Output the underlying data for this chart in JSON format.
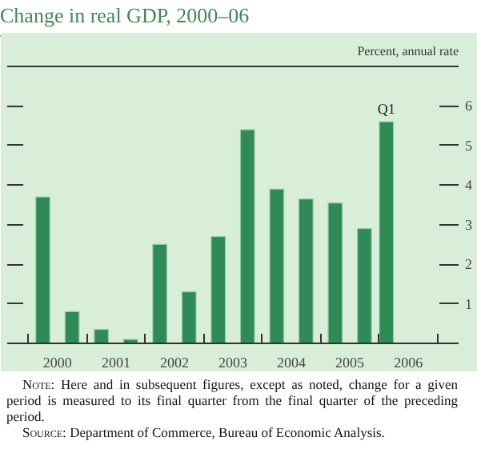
{
  "chart_data": {
    "type": "bar",
    "title": "Change in real GDP, 2000–06",
    "ylabel": "Percent, annual rate",
    "x": [
      2000.25,
      2000.75,
      2001.25,
      2001.75,
      2002.25,
      2002.75,
      2003.25,
      2003.75,
      2004.25,
      2004.75,
      2005.25,
      2005.75,
      2006.125
    ],
    "values": [
      3.7,
      0.8,
      0.35,
      0.1,
      2.5,
      1.3,
      2.7,
      5.4,
      3.9,
      3.65,
      3.55,
      2.9,
      5.6
    ],
    "color": "#2e8b57",
    "xlim": [
      1999.64,
      2007.36
    ],
    "xticks": [
      {
        "value": 2000,
        "label": null
      },
      {
        "value": 2000.5,
        "label": "2000"
      },
      {
        "value": 2001,
        "label": null
      },
      {
        "value": 2001.5,
        "label": "2001"
      },
      {
        "value": 2002,
        "label": null
      },
      {
        "value": 2002.5,
        "label": "2002"
      },
      {
        "value": 2003,
        "label": null
      },
      {
        "value": 2003.5,
        "label": "2003"
      },
      {
        "value": 2004,
        "label": null
      },
      {
        "value": 2004.5,
        "label": "2004"
      },
      {
        "value": 2005,
        "label": null
      },
      {
        "value": 2005.5,
        "label": "2005"
      },
      {
        "value": 2006,
        "label": null
      },
      {
        "value": 2006.5,
        "label": "2006"
      },
      {
        "value": 2007,
        "label": null
      }
    ],
    "ylim": [
      0,
      7
    ],
    "yticks": [
      1,
      2,
      3,
      4,
      5,
      6
    ],
    "grid": false,
    "annotations": [
      {
        "text": "Q1",
        "x": 2006.125,
        "y": 5.6
      },
      "Note: Here and in subsequent figures, except as noted, change for a given period is measured to its final quarter from the final quarter of the preceding period.",
      "Source: Department of Commerce, Bureau of Economic Analysis."
    ]
  }
}
